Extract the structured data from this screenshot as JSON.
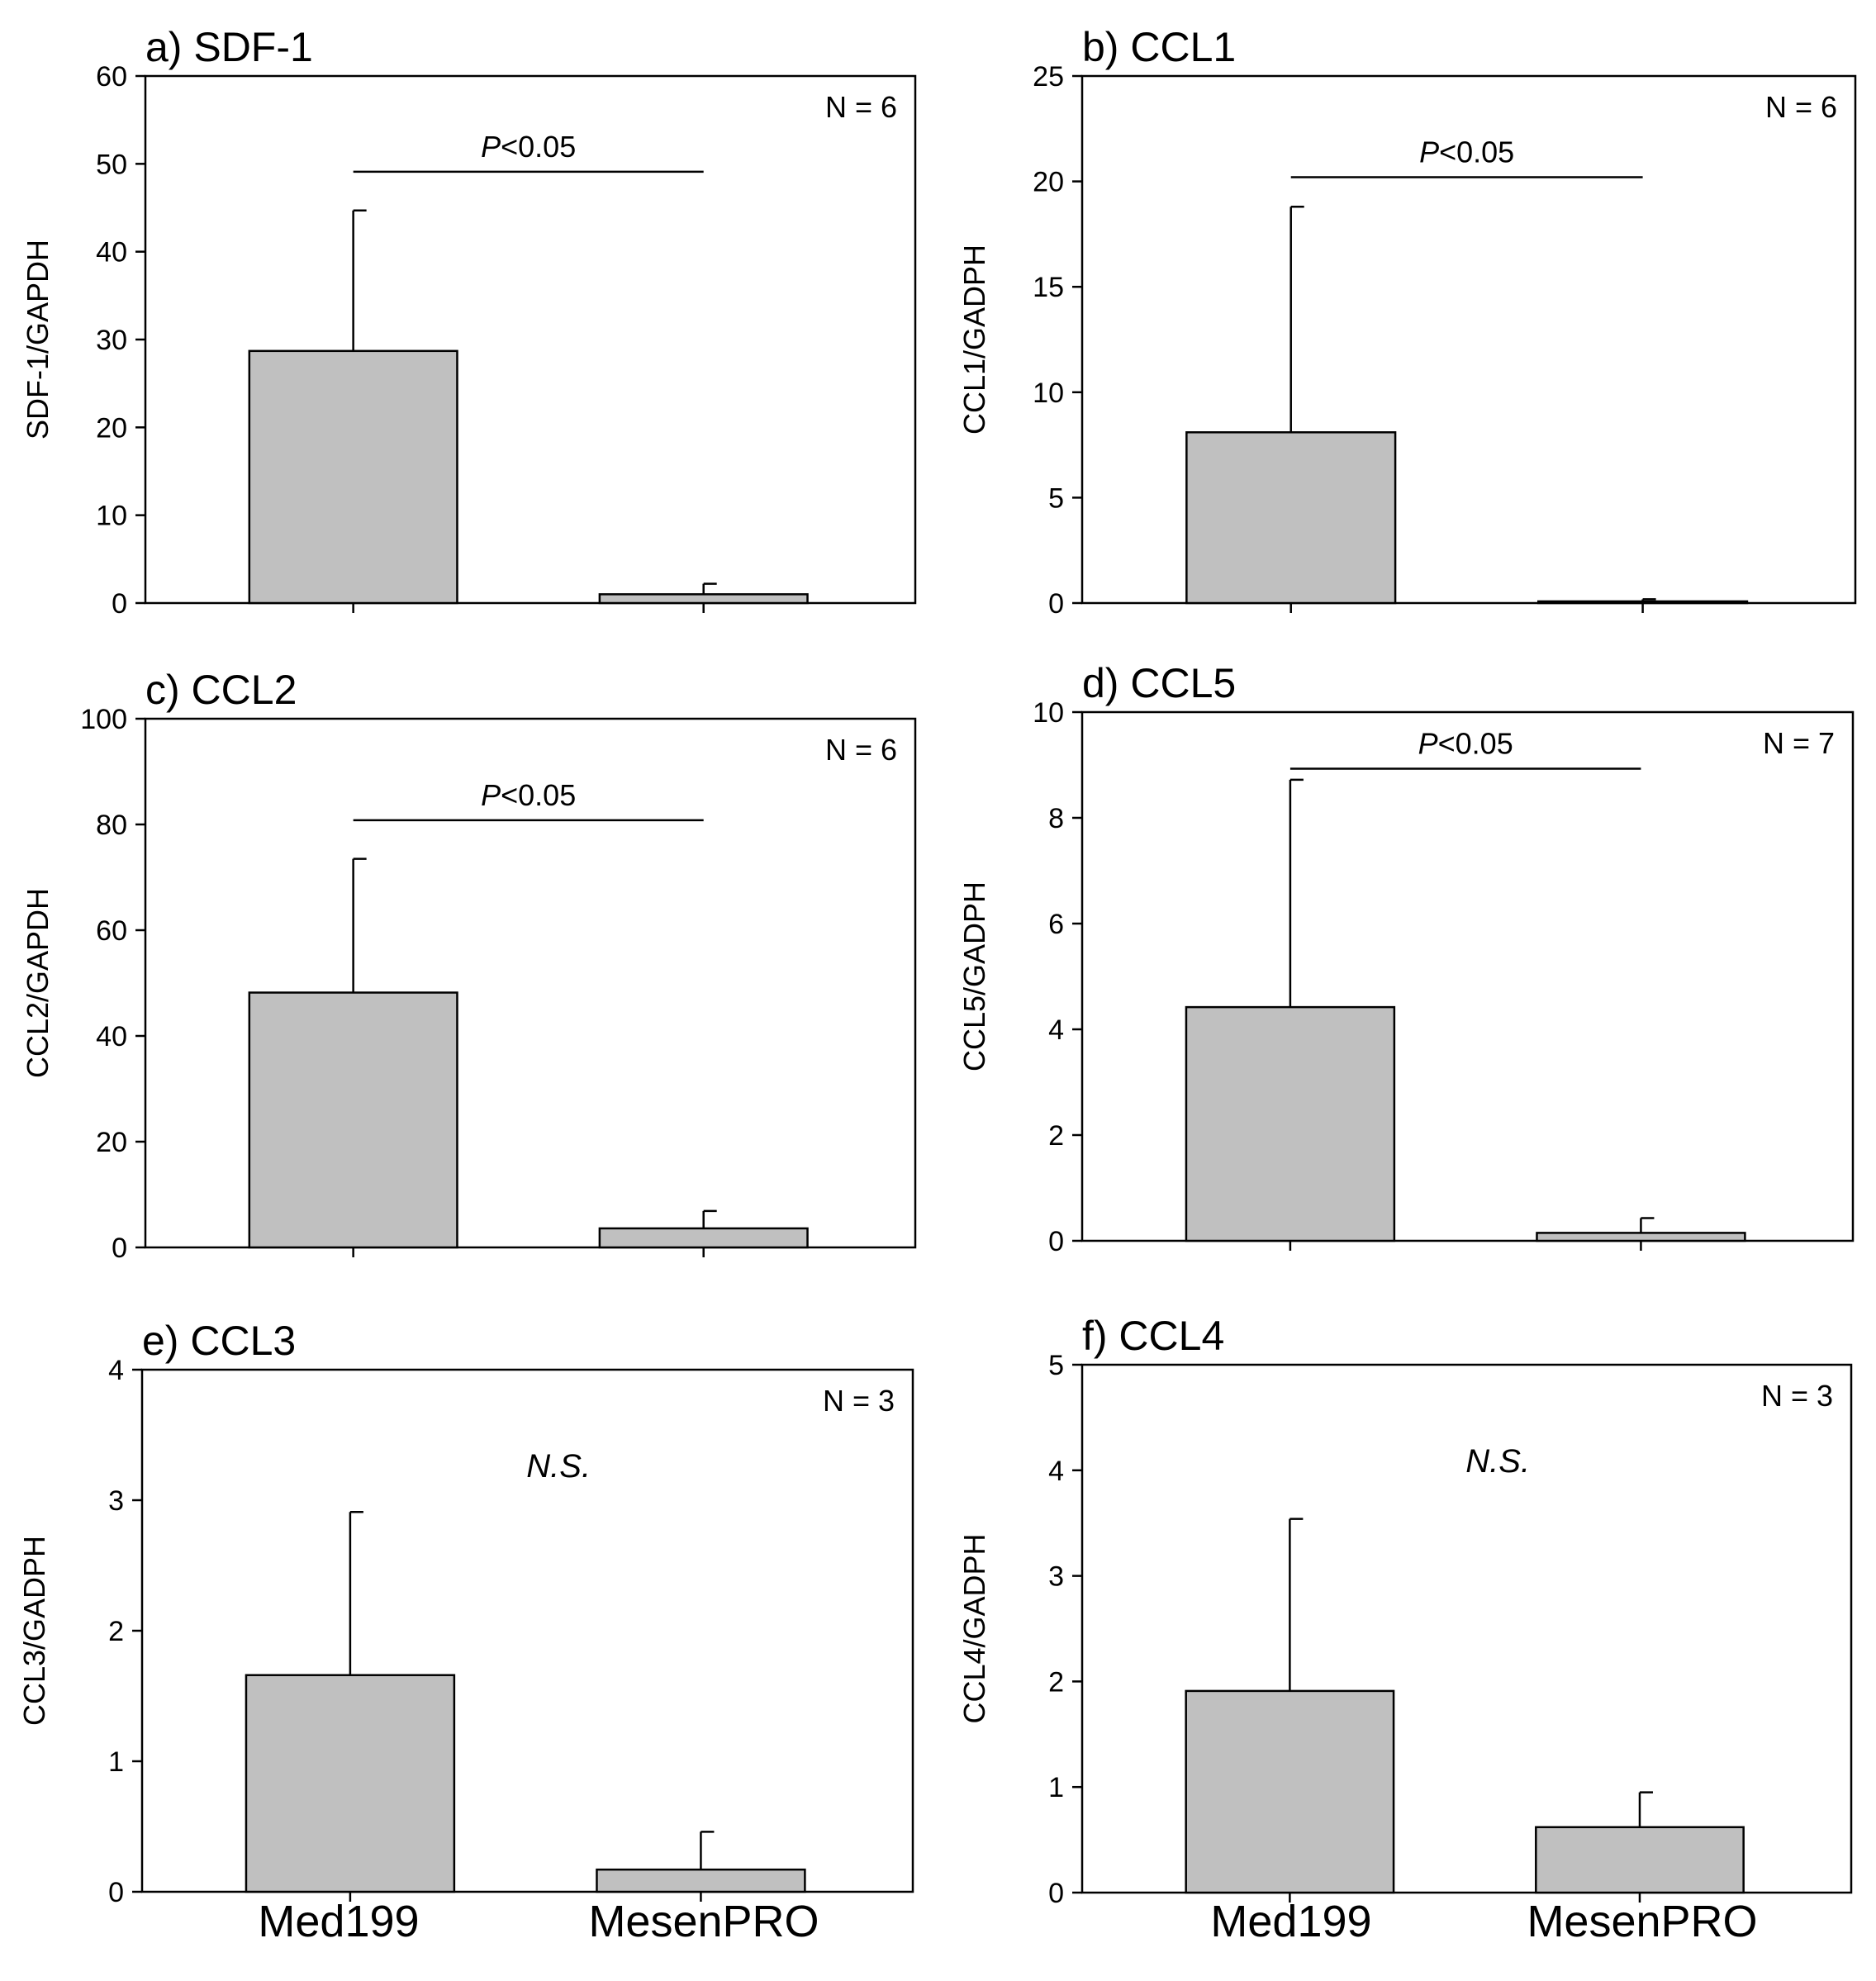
{
  "figure": {
    "x_categories": [
      "Med199",
      "MesenPRO"
    ]
  },
  "chart_data": [
    {
      "type": "bar",
      "title": "a) SDF-1",
      "ylabel": "SDF-1/GAPDH",
      "categories": [
        "Med199",
        "MesenPRO"
      ],
      "values": [
        28.7,
        1.0
      ],
      "errors": [
        16.0,
        1.2
      ],
      "ylim": [
        0,
        60
      ],
      "yticks": [
        0,
        10,
        20,
        30,
        40,
        50,
        60
      ],
      "n_label": "N = 6",
      "annotation": "<0.05",
      "annotation_prefix": "P",
      "significance_y": 49.1
    },
    {
      "type": "bar",
      "title": "b) CCL1",
      "ylabel": "CCL1/GADPH",
      "categories": [
        "Med199",
        "MesenPRO"
      ],
      "values": [
        8.1,
        0.08
      ],
      "errors": [
        10.7,
        0.1
      ],
      "ylim": [
        0,
        25
      ],
      "yticks": [
        0,
        5,
        10,
        15,
        20,
        25
      ],
      "n_label": "N = 6",
      "annotation": "<0.05",
      "annotation_prefix": "P",
      "significance_y": 20.2
    },
    {
      "type": "bar",
      "title": "c) CCL2",
      "ylabel": "CCL2/GAPDH",
      "categories": [
        "Med199",
        "MesenPRO"
      ],
      "values": [
        48.2,
        3.6
      ],
      "errors": [
        25.3,
        3.3
      ],
      "ylim": [
        0,
        100
      ],
      "yticks": [
        0,
        20,
        40,
        60,
        80,
        100
      ],
      "n_label": "N = 6",
      "annotation": "<0.05",
      "annotation_prefix": "P",
      "significance_y": 80.8
    },
    {
      "type": "bar",
      "title": "d) CCL5",
      "ylabel": "CCL5/GADPH",
      "categories": [
        "Med199",
        "MesenPRO"
      ],
      "values": [
        4.42,
        0.15
      ],
      "errors": [
        4.3,
        0.28
      ],
      "ylim": [
        0,
        10
      ],
      "yticks": [
        0,
        2,
        4,
        6,
        8,
        10
      ],
      "n_label": "N = 7",
      "annotation": "<0.05",
      "annotation_prefix": "P",
      "significance_y": 8.93
    },
    {
      "type": "bar",
      "title": "e) CCL3",
      "ylabel": "CCL3/GADPH",
      "categories": [
        "Med199",
        "MesenPRO"
      ],
      "values": [
        1.66,
        0.17
      ],
      "errors": [
        1.25,
        0.29
      ],
      "ylim": [
        0,
        4
      ],
      "yticks": [
        0,
        1,
        2,
        3,
        4
      ],
      "n_label": "N = 3",
      "annotation": "N.S.",
      "annotation_prefix": "",
      "significance_y": null
    },
    {
      "type": "bar",
      "title": "f) CCL4",
      "ylabel": "CCL4/GADPH",
      "categories": [
        "Med199",
        "MesenPRO"
      ],
      "values": [
        1.91,
        0.62
      ],
      "errors": [
        1.63,
        0.33
      ],
      "ylim": [
        0,
        5
      ],
      "yticks": [
        0,
        1,
        2,
        3,
        4,
        5
      ],
      "n_label": "N = 3",
      "annotation": "N.S.",
      "annotation_prefix": "",
      "significance_y": null
    }
  ]
}
